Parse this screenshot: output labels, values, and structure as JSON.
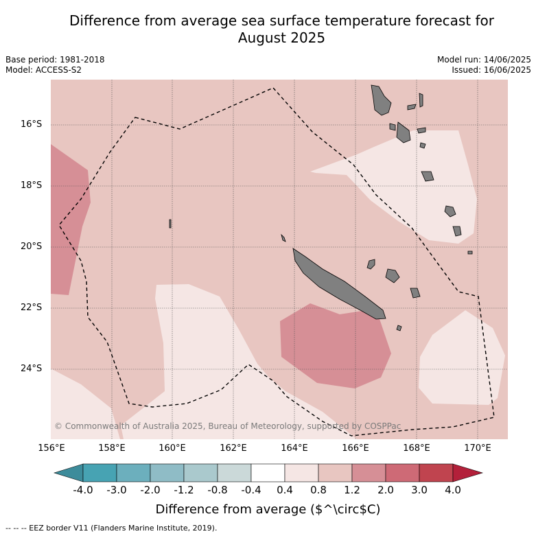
{
  "title_line1": "Difference from average sea surface temperature forecast for",
  "title_line2": "August 2025",
  "base_period": "Base period: 1981-2018",
  "model": "Model: ACCESS-S2",
  "model_run": "Model run: 14/06/2025",
  "issued": "Issued: 16/06/2025",
  "lat_labels": [
    "16°S",
    "18°S",
    "20°S",
    "22°S",
    "24°S"
  ],
  "lon_labels": [
    "156°E",
    "158°E",
    "160°E",
    "162°E",
    "164°E",
    "166°E",
    "168°E",
    "170°E"
  ],
  "colorbar": {
    "ticks": [
      "-4.0",
      "-3.0",
      "-2.0",
      "-1.2",
      "-0.8",
      "-0.4",
      "0.4",
      "0.8",
      "1.2",
      "2.0",
      "3.0",
      "4.0"
    ],
    "colors": [
      "#3d8c9b",
      "#47a3b3",
      "#6cafbd",
      "#8fbcc6",
      "#aac9cd",
      "#cbd9d9",
      "#ffffff",
      "#f5e6e4",
      "#e8c6c1",
      "#d68f96",
      "#ce6a76",
      "#c0444f",
      "#b3203a"
    ],
    "title": "Difference from average ($^\\circ$C)"
  },
  "copyright": "© Commonwealth of Australia 2025, Bureau of Meteorology, supported by COSPPac",
  "footnote": "--  --  -- EEZ border V11 (Flanders Marine Institute, 2019)."
}
